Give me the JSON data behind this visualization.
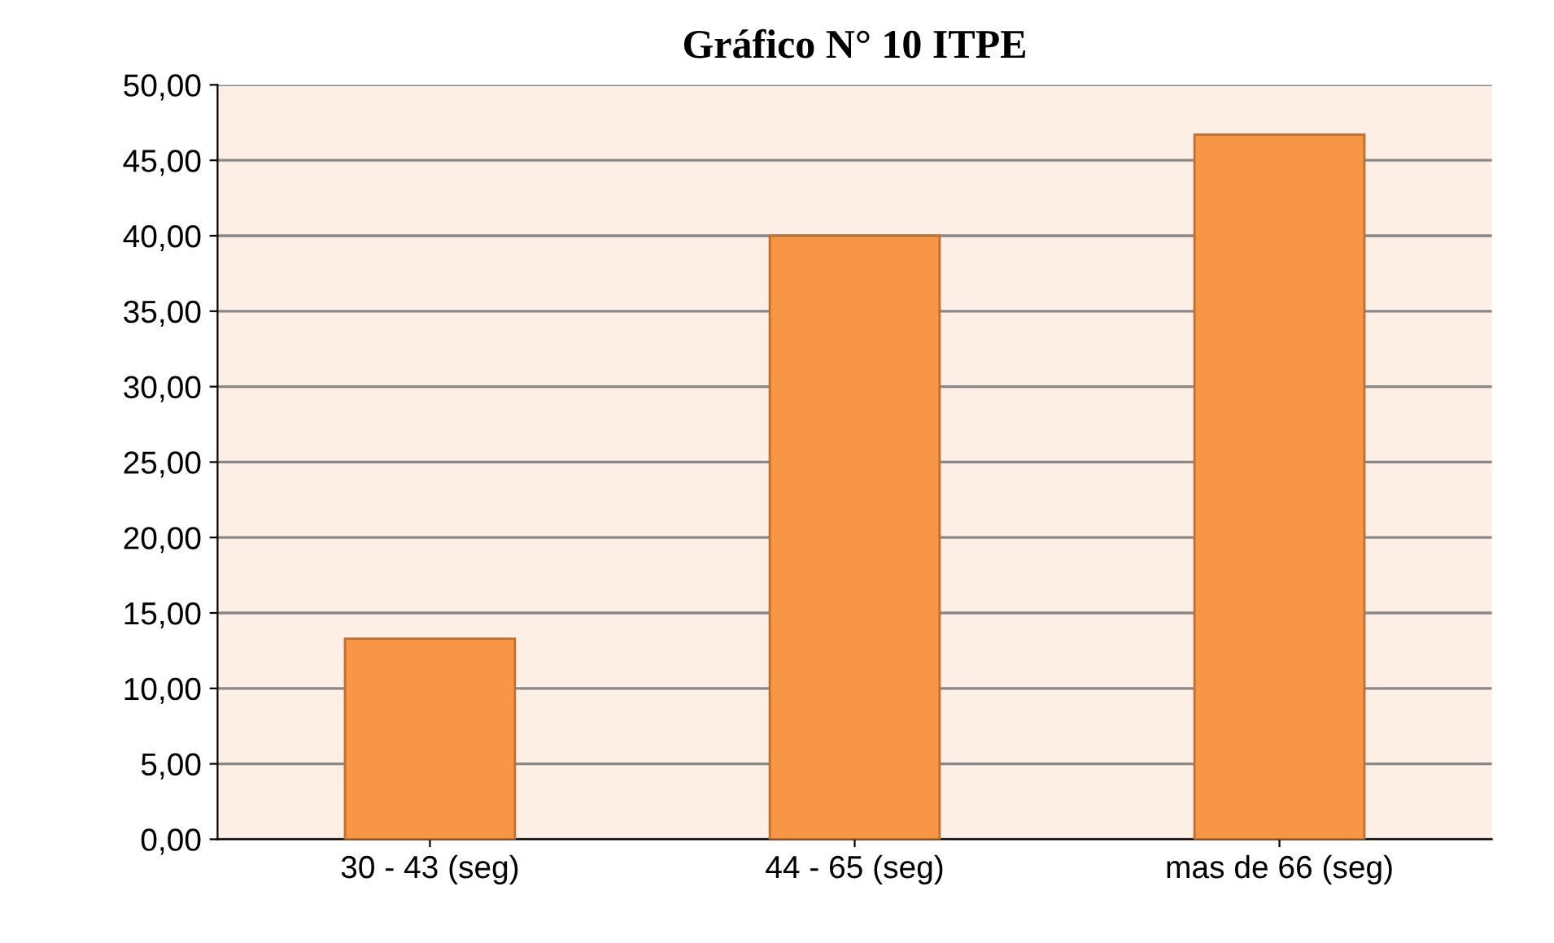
{
  "chart_data": {
    "type": "bar",
    "title": "Gráfico N° 10 ITPE",
    "categories": [
      "30 - 43 (seg)",
      "44 - 65 (seg)",
      "mas de 66 (seg)"
    ],
    "values": [
      13.3,
      40.0,
      46.7
    ],
    "color": "#f79646",
    "ylim": [
      0,
      50
    ],
    "yticks": [
      {
        "value": 0,
        "label": "0,00"
      },
      {
        "value": 5,
        "label": "5,00"
      },
      {
        "value": 10,
        "label": "10,00"
      },
      {
        "value": 15,
        "label": "15,00"
      },
      {
        "value": 20,
        "label": "20,00"
      },
      {
        "value": 25,
        "label": "25,00"
      },
      {
        "value": 30,
        "label": "30,00"
      },
      {
        "value": 35,
        "label": "35,00"
      },
      {
        "value": 40,
        "label": "40,00"
      },
      {
        "value": 45,
        "label": "45,00"
      },
      {
        "value": 50,
        "label": "50,00"
      }
    ],
    "grid": "y"
  }
}
